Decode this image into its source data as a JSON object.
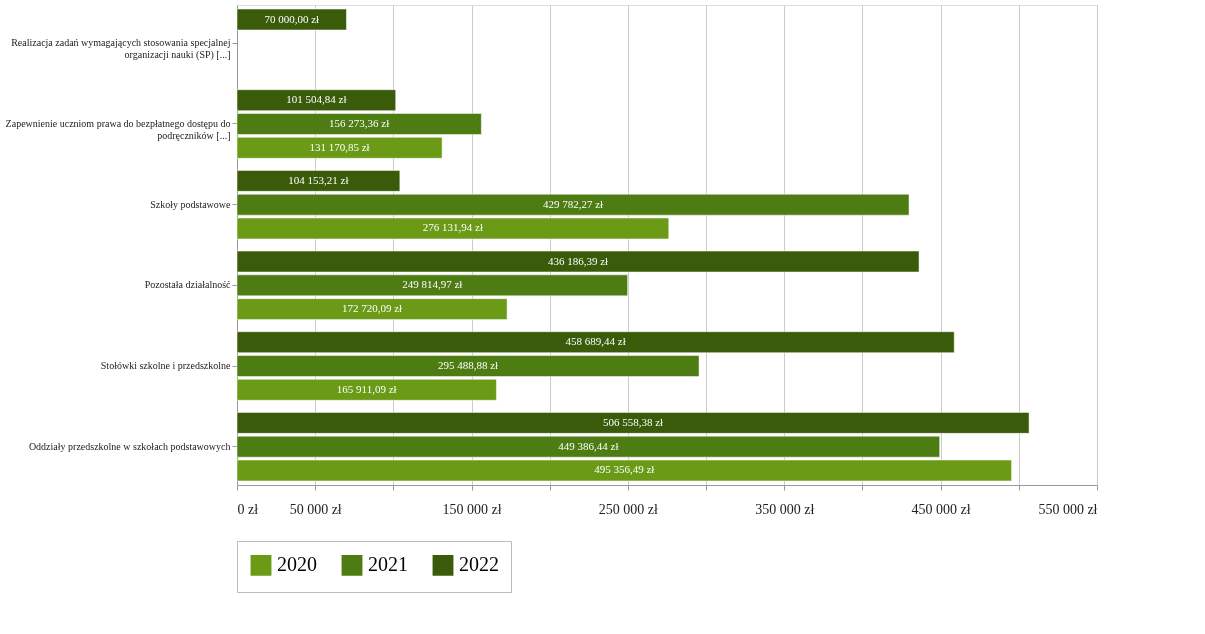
{
  "chart_data": {
    "type": "bar",
    "orientation": "horizontal",
    "categories": [
      "Realizacja zadań wymagających stosowania specjalnej organizacji nauki (SP) [...]",
      "Zapewnienie uczniom prawa do bezpłatnego dostępu do podręczników [...]",
      "Szkoły podstawowe",
      "Pozostała działalność",
      "Stołówki szkolne i przedszkolne",
      "Oddziały przedszkolne w szkołach podstawowych"
    ],
    "series": [
      {
        "name": "2020",
        "color": "#6a9a16",
        "values": [
          null,
          131170.85,
          276131.94,
          172720.09,
          165911.09,
          495356.49
        ],
        "value_labels": [
          null,
          "131 170,85 zł",
          "276 131,94 zł",
          "172 720,09 zł",
          "165 911,09 zł",
          "495 356,49 zł"
        ]
      },
      {
        "name": "2021",
        "color": "#4c7c12",
        "values": [
          null,
          156273.36,
          429782.27,
          249814.97,
          295488.88,
          449386.44
        ],
        "value_labels": [
          null,
          "156 273,36 zł",
          "429 782,27 zł",
          "249 814,97 zł",
          "295 488,88 zł",
          "449 386,44 zł"
        ]
      },
      {
        "name": "2022",
        "color": "#3a5c0a",
        "values": [
          70000.0,
          101504.84,
          104153.21,
          436186.39,
          458689.44,
          506558.38
        ],
        "value_labels": [
          "70 000,00 zł",
          "101 504,84 zł",
          "104 153,21 zł",
          "436 186,39 zł",
          "458 689,44 zł",
          "506 558,38 zł"
        ]
      }
    ],
    "xlim": [
      0,
      550000
    ],
    "xticks": [
      {
        "value": 0,
        "label": "0 zł"
      },
      {
        "value": 50000,
        "label": "50 000 zł"
      },
      {
        "value": 100000,
        "label": null
      },
      {
        "value": 150000,
        "label": "150 000 zł"
      },
      {
        "value": 200000,
        "label": null
      },
      {
        "value": 250000,
        "label": "250 000 zł"
      },
      {
        "value": 300000,
        "label": null
      },
      {
        "value": 350000,
        "label": "350 000 zł"
      },
      {
        "value": 400000,
        "label": null
      },
      {
        "value": 450000,
        "label": "450 000 zł"
      },
      {
        "value": 500000,
        "label": null
      },
      {
        "value": 550000,
        "label": "550 000 zł"
      }
    ],
    "grid": "x",
    "legend": "bottom"
  }
}
